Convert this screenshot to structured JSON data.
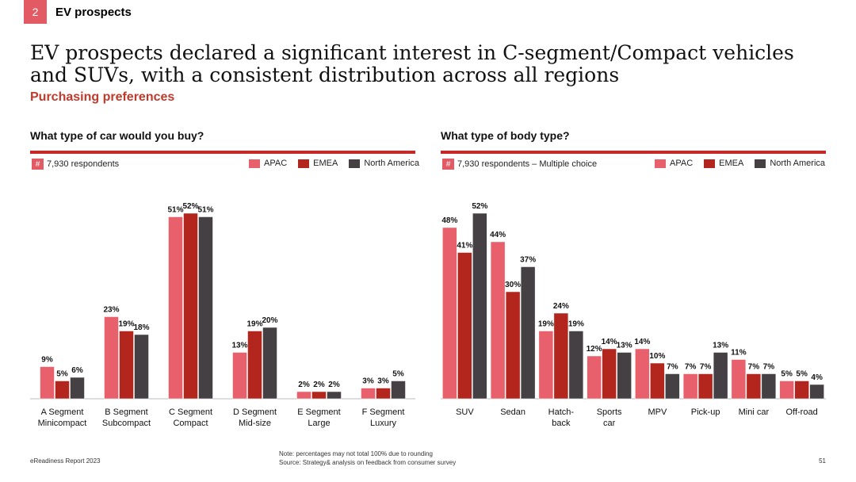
{
  "header": {
    "number": "2",
    "title": "EV prospects"
  },
  "main_title": "EV prospects declared a significant interest in C-segment/Compact vehicles and SUVs, with a consistent distribution across all regions",
  "subtitle": "Purchasing preferences",
  "colors": {
    "apac": "#e8606b",
    "emea": "#b3261e",
    "north_america": "#454044",
    "accent": "#c62828"
  },
  "legend": {
    "apac": "APAC",
    "emea": "EMEA",
    "north_america": "North America"
  },
  "hash_symbol": "#",
  "footer": {
    "left": "eReadiness Report 2023",
    "note": "Note: percentages may not total 100% due to rounding",
    "source": "Source: Strategy& analysis on feedback from consumer survey",
    "page": "51"
  },
  "chart_data": [
    {
      "type": "bar",
      "title": "What type of car would you buy?",
      "respondents": "7,930 respondents",
      "categories": [
        [
          "A Segment",
          "Minicompact"
        ],
        [
          "B Segment",
          "Subcompact"
        ],
        [
          "C Segment",
          "Compact"
        ],
        [
          "D Segment",
          "Mid-size"
        ],
        [
          "E Segment",
          "Large"
        ],
        [
          "F Segment",
          "Luxury"
        ]
      ],
      "series": [
        {
          "name": "APAC",
          "values": [
            9,
            23,
            51,
            13,
            2,
            3
          ]
        },
        {
          "name": "EMEA",
          "values": [
            5,
            19,
            52,
            19,
            2,
            3
          ]
        },
        {
          "name": "North America",
          "values": [
            6,
            18,
            51,
            20,
            2,
            5
          ]
        }
      ],
      "ylim": [
        0,
        52
      ]
    },
    {
      "type": "bar",
      "title": "What type of body type?",
      "respondents": "7,930 respondents – Multiple choice",
      "categories": [
        [
          "SUV"
        ],
        [
          "Sedan"
        ],
        [
          "Hatch-",
          "back"
        ],
        [
          "Sports",
          "car"
        ],
        [
          "MPV"
        ],
        [
          "Pick-up"
        ],
        [
          "Mini car"
        ],
        [
          "Off-road"
        ]
      ],
      "series": [
        {
          "name": "APAC",
          "values": [
            48,
            44,
            19,
            12,
            14,
            7,
            11,
            5
          ]
        },
        {
          "name": "EMEA",
          "values": [
            41,
            30,
            24,
            14,
            10,
            7,
            7,
            5
          ]
        },
        {
          "name": "North America",
          "values": [
            52,
            37,
            19,
            13,
            7,
            13,
            7,
            4
          ]
        }
      ],
      "ylim": [
        0,
        52
      ]
    }
  ]
}
